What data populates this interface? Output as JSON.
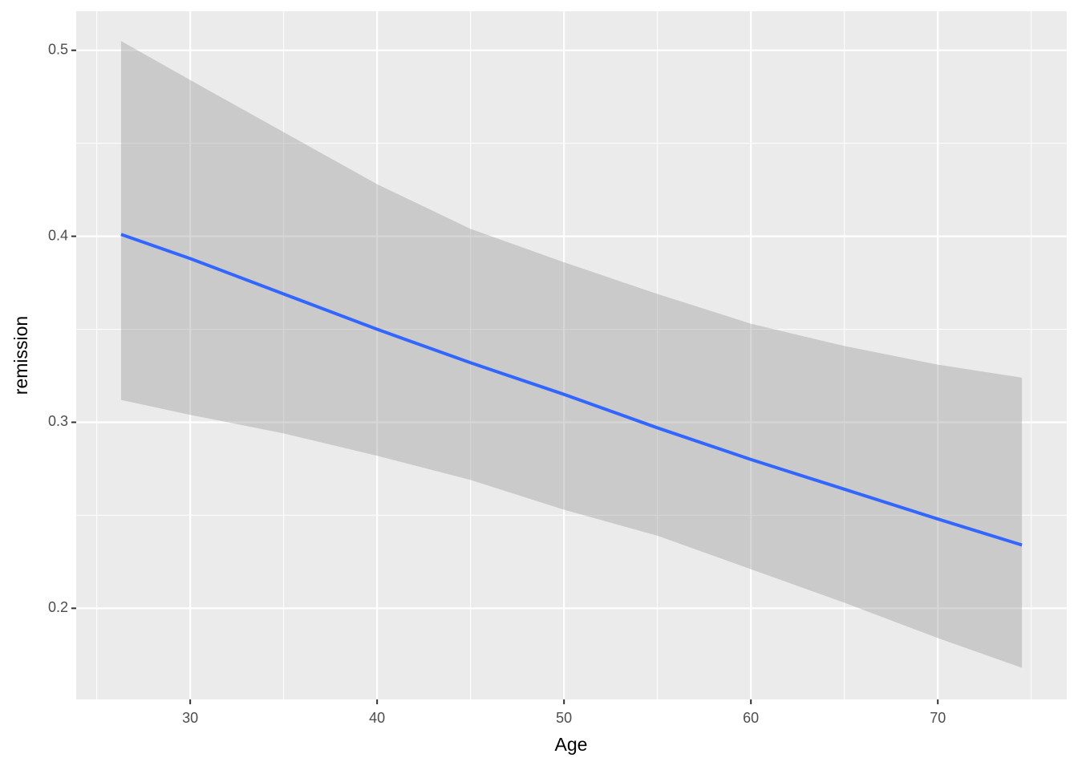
{
  "chart_data": {
    "type": "line",
    "x_label": "Age",
    "y_label": "remission",
    "x": [
      26.3,
      30,
      35,
      40,
      45,
      50,
      55,
      60,
      65,
      70,
      74.5
    ],
    "series": [
      {
        "color": "#3366ff",
        "band_color": "#999999",
        "values": [
          0.401,
          0.388,
          0.369,
          0.35,
          0.332,
          0.315,
          0.297,
          0.28,
          0.264,
          0.248,
          0.234
        ],
        "upper": [
          0.505,
          0.484,
          0.456,
          0.428,
          0.404,
          0.386,
          0.369,
          0.353,
          0.341,
          0.331,
          0.324
        ],
        "lower": [
          0.312,
          0.304,
          0.294,
          0.282,
          0.269,
          0.253,
          0.239,
          0.221,
          0.203,
          0.184,
          0.168
        ]
      }
    ],
    "xlim": [
      23.9,
      76.9
    ],
    "ylim": [
      0.151,
      0.521
    ],
    "xticks": [
      30,
      40,
      50,
      60,
      70
    ],
    "yticks": [
      0.2,
      0.3,
      0.4,
      0.5
    ],
    "grid": true,
    "panel_color": "#ebebeb"
  }
}
